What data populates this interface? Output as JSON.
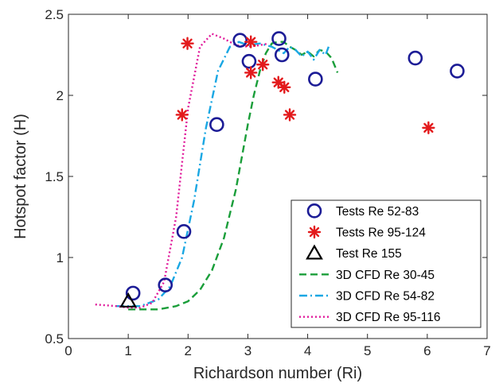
{
  "chart_data": {
    "type": "scatter",
    "xlabel": "Richardson number (Ri)",
    "ylabel": "Hotspot factor (H)",
    "xlim": [
      0,
      7
    ],
    "ylim": [
      0.5,
      2.5
    ],
    "xticks": [
      0,
      1,
      2,
      3,
      4,
      5,
      6,
      7
    ],
    "yticks": [
      0.5,
      1,
      1.5,
      2,
      2.5
    ],
    "xtick_labels": [
      "0",
      "1",
      "2",
      "3",
      "4",
      "5",
      "6",
      "7"
    ],
    "ytick_labels": [
      "0.5",
      "1",
      "1.5",
      "2",
      "2.5"
    ],
    "grid": false,
    "legend_position": "bottom-right",
    "series": [
      {
        "name": "Tests Re 52-83",
        "kind": "scatter",
        "marker": "circle-open",
        "color": "#1c1c96",
        "x": [
          1.08,
          1.62,
          1.93,
          2.48,
          2.87,
          3.02,
          3.52,
          3.57,
          4.13,
          5.8,
          6.5
        ],
        "y": [
          0.78,
          0.83,
          1.16,
          1.82,
          2.34,
          2.21,
          2.35,
          2.25,
          2.1,
          2.23,
          2.15
        ]
      },
      {
        "name": "Tests Re 95-124",
        "kind": "scatter",
        "marker": "asterisk",
        "color": "#e31a1c",
        "x": [
          1.9,
          1.99,
          3.05,
          3.05,
          3.25,
          3.51,
          3.61,
          3.7,
          6.02
        ],
        "y": [
          1.88,
          2.32,
          2.33,
          2.14,
          2.19,
          2.08,
          2.05,
          1.88,
          1.8
        ]
      },
      {
        "name": "Test Re 155",
        "kind": "scatter",
        "marker": "triangle-open",
        "color": "#000000",
        "x": [
          1.0
        ],
        "y": [
          0.73
        ]
      },
      {
        "name": "3D CFD Re 30-45",
        "kind": "line",
        "dash": "dashed",
        "color": "#1a9e3a",
        "x": [
          1.0,
          1.5,
          1.8,
          2.0,
          2.2,
          2.4,
          2.6,
          2.8,
          3.0,
          3.1,
          3.2,
          3.3,
          3.4,
          3.5,
          3.6,
          3.7,
          3.8,
          3.9,
          4.0,
          4.1,
          4.2,
          4.3,
          4.4,
          4.5
        ],
        "y": [
          0.68,
          0.68,
          0.7,
          0.73,
          0.8,
          0.92,
          1.12,
          1.42,
          1.82,
          2.0,
          2.15,
          2.26,
          2.32,
          2.33,
          2.33,
          2.3,
          2.28,
          2.25,
          2.27,
          2.24,
          2.28,
          2.27,
          2.23,
          2.14
        ]
      },
      {
        "name": "3D CFD Re 54-82",
        "kind": "line",
        "dash": "dashdot",
        "color": "#1aa7e3",
        "x": [
          0.8,
          1.2,
          1.5,
          1.7,
          1.9,
          2.1,
          2.3,
          2.5,
          2.7,
          2.85,
          3.0,
          3.2,
          3.4,
          3.5,
          3.6,
          3.7,
          3.8,
          3.9,
          4.0,
          4.1,
          4.2,
          4.3,
          4.35
        ],
        "y": [
          0.7,
          0.7,
          0.74,
          0.82,
          1.0,
          1.35,
          1.8,
          2.15,
          2.3,
          2.33,
          2.31,
          2.32,
          2.3,
          2.28,
          2.26,
          2.3,
          2.28,
          2.24,
          2.27,
          2.22,
          2.28,
          2.25,
          2.3
        ]
      },
      {
        "name": "3D CFD Re 95-116",
        "kind": "line",
        "dash": "dotted",
        "color": "#e0189a",
        "x": [
          0.45,
          0.8,
          1.0,
          1.2,
          1.4,
          1.6,
          1.8,
          2.0,
          2.2,
          2.4,
          2.6,
          2.8,
          3.0,
          3.2,
          3.35
        ],
        "y": [
          0.71,
          0.7,
          0.69,
          0.69,
          0.72,
          0.85,
          1.25,
          1.92,
          2.3,
          2.38,
          2.35,
          2.31,
          2.3,
          2.31,
          2.32
        ]
      }
    ]
  }
}
